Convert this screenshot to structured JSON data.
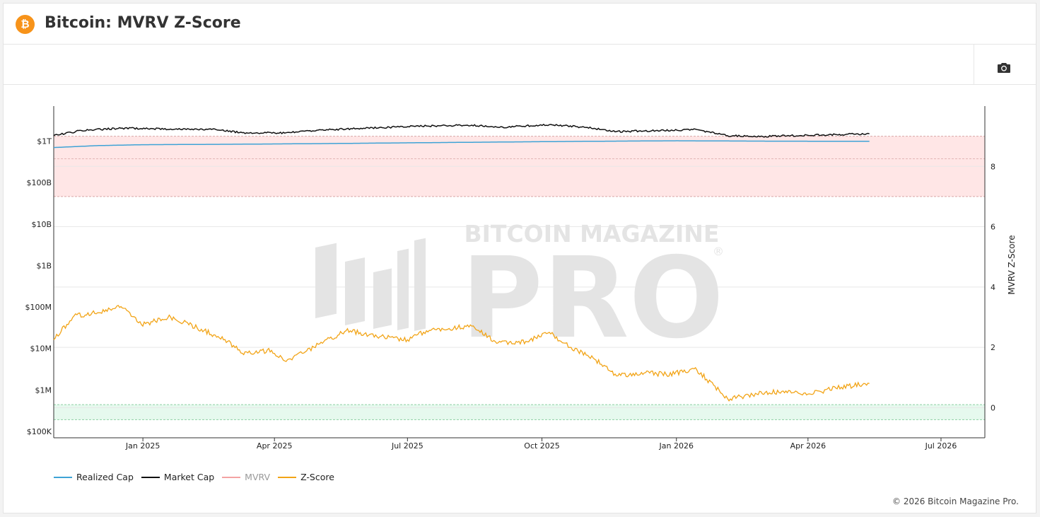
{
  "header": {
    "title": "Bitcoin: MVRV Z-Score",
    "logo_glyph": "₿",
    "logo_color": "#f7931a"
  },
  "toolbar": {
    "camera_icon": "camera-icon"
  },
  "watermark": {
    "line1": "BITCOIN MAGAZINE",
    "line2": "PRO",
    "mark": "®"
  },
  "footer": {
    "copyright": "© 2026 Bitcoin Magazine Pro."
  },
  "chart_data": {
    "type": "line",
    "x_type": "date",
    "x_ticks": [
      "Jan 2025",
      "Apr 2025",
      "Jul 2025",
      "Oct 2025",
      "Jan 2026",
      "Apr 2026",
      "Jul 2026"
    ],
    "x_tick_dates": [
      "2025-01-01",
      "2025-04-01",
      "2025-07-01",
      "2025-10-01",
      "2026-01-01",
      "2026-04-01",
      "2026-07-01"
    ],
    "xlim": [
      "2024-11-01",
      "2026-07-31"
    ],
    "y_left": {
      "scale": "log",
      "ylim": [
        70000,
        7000000000000
      ],
      "ticks": [
        100000,
        1000000,
        10000000,
        100000000,
        1000000000,
        10000000000,
        100000000000,
        1000000000000
      ],
      "tick_labels": [
        "$100K",
        "$1M",
        "$10M",
        "$100M",
        "$1B",
        "$10B",
        "$100B",
        "$1T"
      ]
    },
    "y_right": {
      "label": "MVRV Z-Score",
      "scale": "linear",
      "ylim": [
        -1,
        10
      ],
      "ticks": [
        0,
        2,
        4,
        6,
        8
      ],
      "tick_labels": [
        "0",
        "2",
        "4",
        "6",
        "8"
      ]
    },
    "bands": [
      {
        "name": "overvalued",
        "axis": "right",
        "from": 7,
        "to": 9,
        "color": "#ffe6e6",
        "border": "#d9a6a6",
        "mid": 8.25
      },
      {
        "name": "undervalued",
        "axis": "right",
        "from": -0.4,
        "to": 0.1,
        "color": "#e6f9ee",
        "border": "#8ccfa3"
      }
    ],
    "series": [
      {
        "name": "Realized Cap",
        "axis": "left",
        "color": "#3ea3d6",
        "points": [
          [
            "2024-11-01",
            700000000000
          ],
          [
            "2024-12-01",
            780000000000
          ],
          [
            "2025-01-01",
            820000000000
          ],
          [
            "2025-03-01",
            840000000000
          ],
          [
            "2025-05-01",
            870000000000
          ],
          [
            "2025-07-01",
            910000000000
          ],
          [
            "2025-09-01",
            950000000000
          ],
          [
            "2025-11-01",
            990000000000
          ],
          [
            "2026-01-01",
            1020000000000
          ],
          [
            "2026-03-01",
            1000000000000
          ],
          [
            "2026-05-13",
            990000000000
          ]
        ]
      },
      {
        "name": "Market Cap",
        "axis": "left",
        "color": "#111111",
        "points": [
          [
            "2024-11-01",
            1350000000000
          ],
          [
            "2024-11-20",
            1800000000000
          ],
          [
            "2024-12-17",
            2050000000000
          ],
          [
            "2025-01-20",
            1960000000000
          ],
          [
            "2025-02-20",
            1900000000000
          ],
          [
            "2025-03-10",
            1600000000000
          ],
          [
            "2025-04-08",
            1560000000000
          ],
          [
            "2025-05-01",
            1850000000000
          ],
          [
            "2025-06-01",
            2050000000000
          ],
          [
            "2025-07-14",
            2320000000000
          ],
          [
            "2025-08-14",
            2420000000000
          ],
          [
            "2025-09-01",
            2150000000000
          ],
          [
            "2025-10-06",
            2490000000000
          ],
          [
            "2025-11-01",
            2150000000000
          ],
          [
            "2025-11-21",
            1700000000000
          ],
          [
            "2025-12-15",
            1780000000000
          ],
          [
            "2026-01-15",
            1900000000000
          ],
          [
            "2026-02-05",
            1350000000000
          ],
          [
            "2026-03-01",
            1300000000000
          ],
          [
            "2026-04-01",
            1380000000000
          ],
          [
            "2026-05-13",
            1500000000000
          ]
        ]
      },
      {
        "name": "MVRV",
        "axis": "left",
        "color": "#f4a3a3",
        "hidden": true,
        "points": []
      },
      {
        "name": "Z-Score",
        "axis": "right",
        "color": "#f2a417",
        "points": [
          [
            "2024-11-01",
            2.25
          ],
          [
            "2024-11-15",
            3.05
          ],
          [
            "2024-12-01",
            3.15
          ],
          [
            "2024-12-17",
            3.35
          ],
          [
            "2024-12-31",
            2.75
          ],
          [
            "2025-01-20",
            3.0
          ],
          [
            "2025-02-10",
            2.6
          ],
          [
            "2025-02-28",
            2.2
          ],
          [
            "2025-03-10",
            1.8
          ],
          [
            "2025-03-30",
            1.9
          ],
          [
            "2025-04-08",
            1.55
          ],
          [
            "2025-04-20",
            1.8
          ],
          [
            "2025-05-01",
            2.1
          ],
          [
            "2025-05-20",
            2.55
          ],
          [
            "2025-06-15",
            2.35
          ],
          [
            "2025-07-01",
            2.25
          ],
          [
            "2025-07-14",
            2.55
          ],
          [
            "2025-08-14",
            2.7
          ],
          [
            "2025-09-01",
            2.15
          ],
          [
            "2025-09-20",
            2.2
          ],
          [
            "2025-10-06",
            2.5
          ],
          [
            "2025-10-20",
            2.0
          ],
          [
            "2025-11-05",
            1.65
          ],
          [
            "2025-11-21",
            1.05
          ],
          [
            "2025-12-10",
            1.15
          ],
          [
            "2025-12-25",
            1.1
          ],
          [
            "2026-01-15",
            1.25
          ],
          [
            "2026-02-05",
            0.3
          ],
          [
            "2026-02-25",
            0.45
          ],
          [
            "2026-03-15",
            0.55
          ],
          [
            "2026-04-01",
            0.45
          ],
          [
            "2026-04-20",
            0.65
          ],
          [
            "2026-05-13",
            0.8
          ]
        ]
      }
    ],
    "legend": {
      "position": "bottom-left",
      "entries": [
        "Realized Cap",
        "Market Cap",
        "MVRV",
        "Z-Score"
      ]
    },
    "grid": true
  }
}
